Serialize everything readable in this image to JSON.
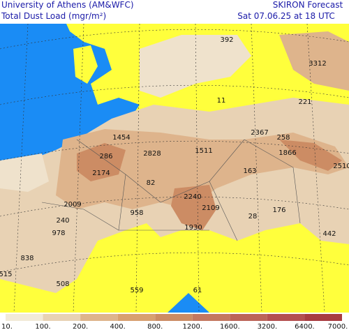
{
  "header": {
    "left_line1": "University of Athens (AM&WFC)",
    "left_line2": "Total Dust Load (mgr/m²)",
    "right_line1": "SKIRON Forecast",
    "right_line2": "Sat 07.06.25 at 18 UTC"
  },
  "map": {
    "labels": [
      392,
      3312,
      221,
      11,
      2367,
      258,
      1454,
      286,
      2828,
      1511,
      1866,
      2510,
      163,
      2174,
      82,
      2240,
      2109,
      2009,
      958,
      28,
      176,
      240,
      978,
      1930,
      442,
      838,
      515,
      508,
      559,
      61
    ]
  },
  "legend": {
    "labels": [
      "10.",
      "100.",
      "200.",
      "400.",
      "800.",
      "1200.",
      "1600.",
      "3200.",
      "6400.",
      "7000."
    ]
  }
}
